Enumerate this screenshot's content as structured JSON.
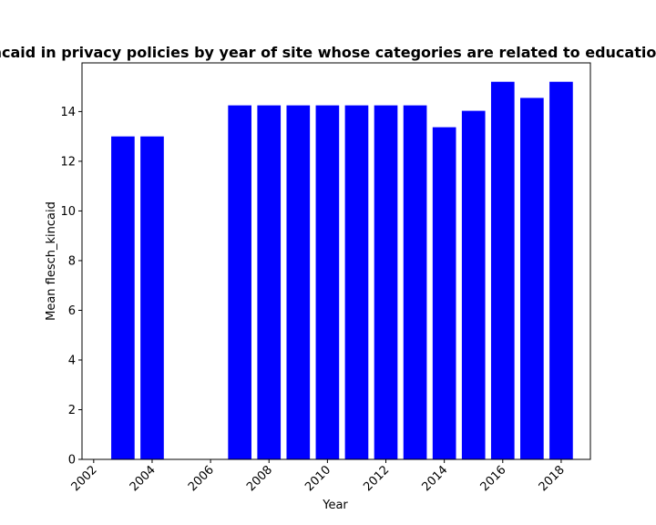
{
  "chart_data": {
    "type": "bar",
    "title": "Mean flesch_kincaid in privacy policies by year of site whose categories are related to education;shopping;vehicles",
    "xlabel": "Year",
    "ylabel": "Mean flesch_kincaid",
    "x": [
      2003,
      2004,
      2007,
      2008,
      2009,
      2010,
      2011,
      2012,
      2013,
      2014,
      2015,
      2016,
      2017,
      2018
    ],
    "values": [
      13.0,
      13.0,
      14.25,
      14.25,
      14.25,
      14.25,
      14.25,
      14.25,
      14.25,
      13.37,
      14.03,
      15.2,
      14.55,
      15.2
    ],
    "xlim": [
      2001.6,
      2019.0
    ],
    "ylim": [
      0,
      15.96
    ],
    "xticks": [
      2002,
      2004,
      2006,
      2008,
      2010,
      2012,
      2014,
      2016,
      2018
    ],
    "yticks": [
      0,
      2,
      4,
      6,
      8,
      10,
      12,
      14
    ],
    "bar_color": "#0000ff",
    "grid": false,
    "legend": "none"
  }
}
